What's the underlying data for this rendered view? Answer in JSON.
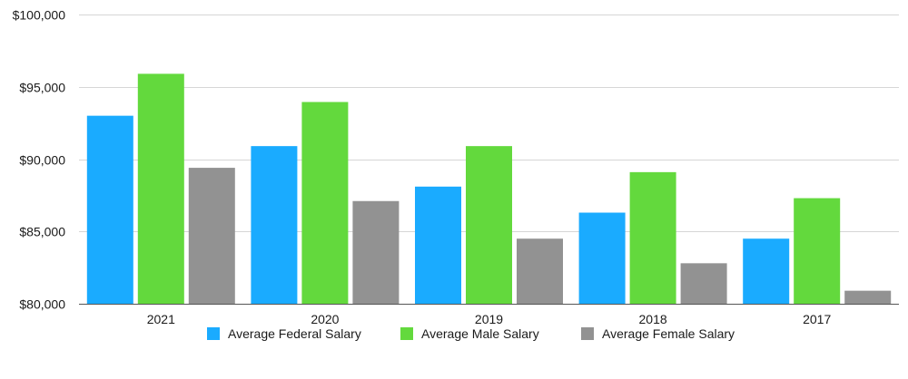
{
  "chart_data": {
    "type": "bar",
    "title": "",
    "xlabel": "",
    "ylabel": "",
    "categories": [
      "2021",
      "2020",
      "2019",
      "2018",
      "2017"
    ],
    "series": [
      {
        "name": "Average Federal Salary",
        "color": "#1aabff",
        "values": [
          93000,
          90900,
          88100,
          86300,
          84500
        ]
      },
      {
        "name": "Average Male Salary",
        "color": "#63d93d",
        "values": [
          95900,
          93950,
          90900,
          89100,
          87300
        ]
      },
      {
        "name": "Average Female Salary",
        "color": "#929292",
        "values": [
          89400,
          87100,
          84500,
          82800,
          80900
        ]
      }
    ],
    "ylim": [
      80000,
      100000
    ],
    "yticks": [
      80000,
      85000,
      90000,
      95000,
      100000
    ],
    "ytick_labels": [
      "$80,000",
      "$85,000",
      "$90,000",
      "$95,000",
      "$100,000"
    ],
    "grid": true,
    "legend_position": "bottom"
  }
}
